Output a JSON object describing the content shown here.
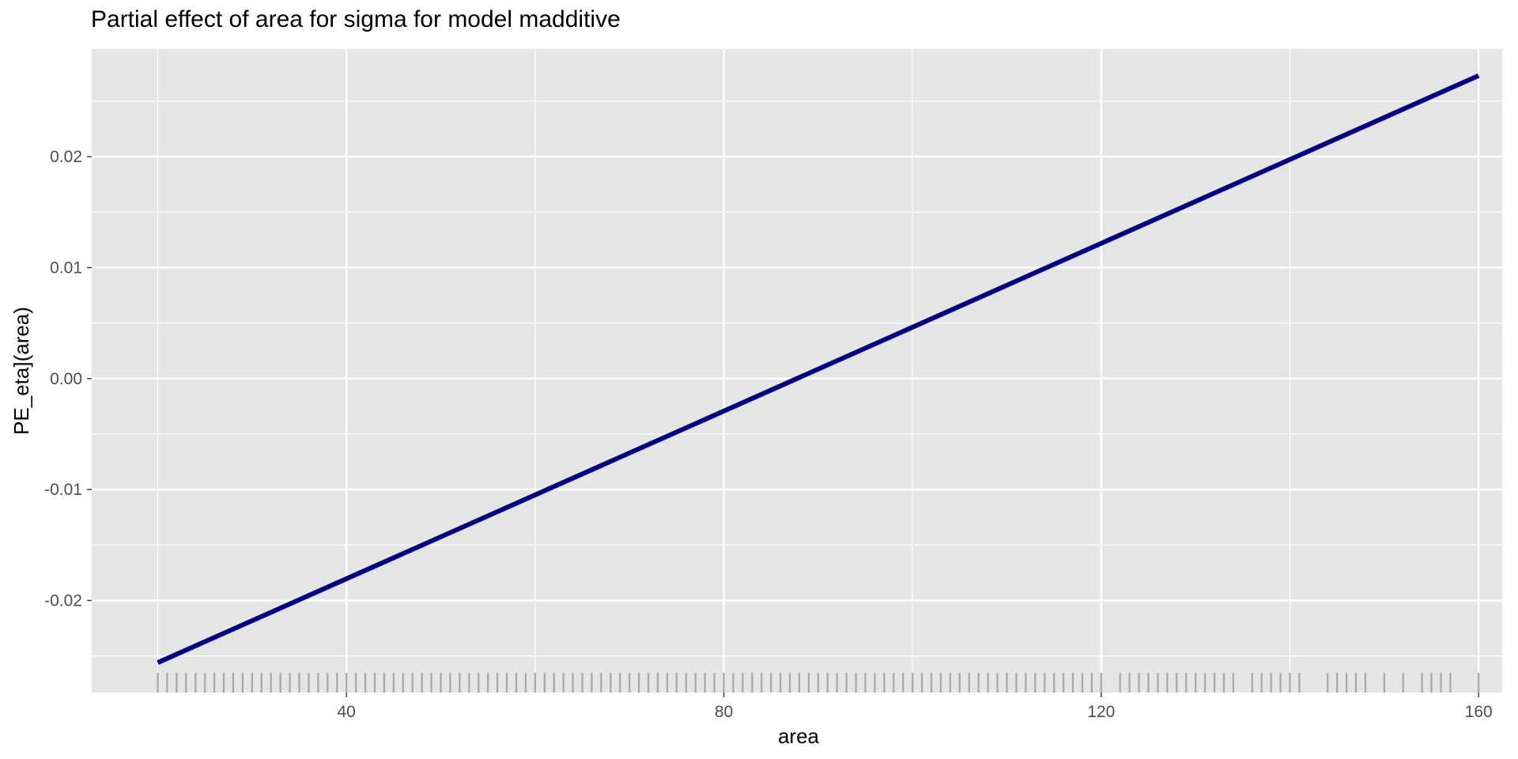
{
  "chart_data": {
    "type": "line",
    "title": "Partial effect of area for sigma for model madditive",
    "xlabel": "area",
    "ylabel": "PE_eta](area)",
    "xlim": [
      13,
      162.5
    ],
    "ylim": [
      -0.0283,
      0.0297
    ],
    "x_ticks": [
      40,
      80,
      120,
      160
    ],
    "y_ticks": [
      0.02,
      0.01,
      0.0,
      -0.01,
      -0.02
    ],
    "x_tick_labels": [
      "40",
      "80",
      "120",
      "160"
    ],
    "y_tick_labels": [
      "0.02",
      "0.01",
      "0.00",
      "-0.01",
      "-0.02"
    ],
    "grid": true,
    "background": "#e5e5e5",
    "grid_color": "#ffffff",
    "series": [
      {
        "color": "#000080",
        "x": [
          20,
          160
        ],
        "y": [
          -0.0256,
          0.0273
        ]
      }
    ],
    "rug_x": [
      20,
      21,
      22,
      23,
      24,
      25,
      26,
      27,
      28,
      29,
      30,
      31,
      32,
      33,
      34,
      35,
      36,
      37,
      38,
      39,
      40,
      41,
      42,
      43,
      44,
      45,
      46,
      47,
      48,
      49,
      50,
      51,
      52,
      53,
      54,
      55,
      56,
      57,
      58,
      59,
      60,
      61,
      62,
      63,
      64,
      65,
      66,
      67,
      68,
      69,
      70,
      71,
      72,
      73,
      74,
      75,
      76,
      77,
      78,
      79,
      80,
      81,
      82,
      83,
      84,
      85,
      86,
      87,
      88,
      89,
      90,
      91,
      92,
      93,
      94,
      95,
      96,
      97,
      98,
      99,
      100,
      101,
      102,
      103,
      104,
      105,
      106,
      107,
      108,
      109,
      110,
      111,
      112,
      113,
      114,
      115,
      116,
      117,
      118,
      119,
      120,
      122,
      123,
      124,
      125,
      126,
      127,
      128,
      129,
      130,
      131,
      132,
      133,
      134,
      136,
      137,
      138,
      139,
      140,
      141,
      144,
      145,
      146,
      147,
      148,
      150,
      152,
      154,
      155,
      156,
      157,
      160
    ],
    "rug_color": "#a6a6a6"
  }
}
